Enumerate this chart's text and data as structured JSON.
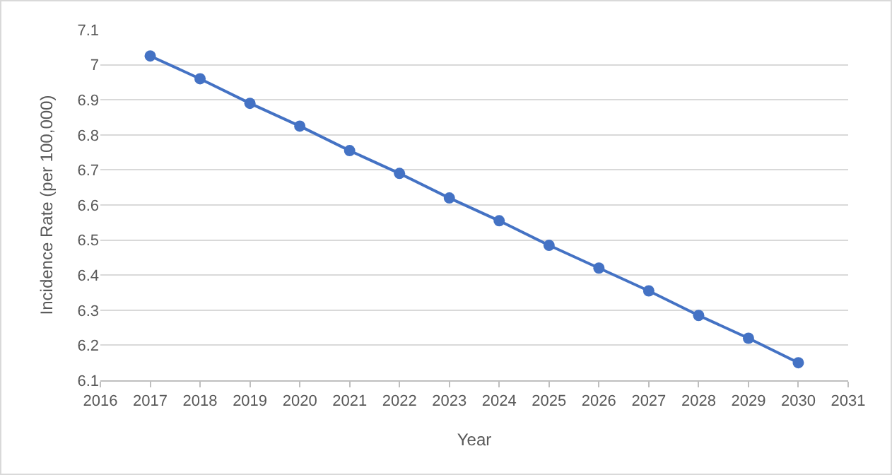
{
  "chart_data": {
    "type": "line",
    "xlabel": "Year",
    "ylabel": "Incidence Rate (per 100,000)",
    "x": [
      2017,
      2018,
      2019,
      2020,
      2021,
      2022,
      2023,
      2024,
      2025,
      2026,
      2027,
      2028,
      2029,
      2030
    ],
    "series": [
      {
        "color": "#4472c4",
        "values": [
          7.025,
          6.96,
          6.89,
          6.825,
          6.755,
          6.69,
          6.62,
          6.555,
          6.485,
          6.42,
          6.355,
          6.285,
          6.22,
          6.15
        ]
      }
    ],
    "xlim": [
      2016,
      2031
    ],
    "xticks": [
      2016,
      2017,
      2018,
      2019,
      2020,
      2021,
      2022,
      2023,
      2024,
      2025,
      2026,
      2027,
      2028,
      2029,
      2030,
      2031
    ],
    "ylim": [
      6.1,
      7.1
    ],
    "yticks": [
      6.1,
      6.2,
      6.3,
      6.4,
      6.5,
      6.6,
      6.7,
      6.8,
      6.9,
      7,
      7.1
    ],
    "grid": "y",
    "legend": false,
    "marker": "circle",
    "line_style": "solid"
  }
}
